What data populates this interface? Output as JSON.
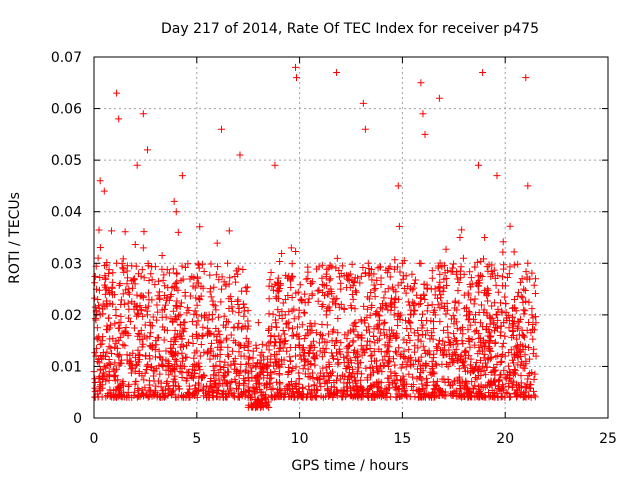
{
  "chart_data": {
    "type": "scatter",
    "title": "Day 217 of 2014, Rate Of TEC Index for receiver p475",
    "xlabel": "GPS time / hours",
    "ylabel": "ROTI / TECUs",
    "xlim": [
      0,
      25
    ],
    "ylim": [
      0,
      0.07
    ],
    "xticks": [
      0,
      5,
      10,
      15,
      20,
      25
    ],
    "yticks": [
      0,
      0.01,
      0.02,
      0.03,
      0.04,
      0.05,
      0.06,
      0.07
    ],
    "xtick_labels": [
      "0",
      "5",
      "10",
      "15",
      "20",
      "25"
    ],
    "ytick_labels": [
      "0",
      "0.01",
      "0.02",
      "0.03",
      "0.04",
      "0.05",
      "0.06",
      "0.07"
    ],
    "grid": true,
    "marker": "plus",
    "color": "#ff0000",
    "x_range_observed": [
      0.0,
      21.5
    ],
    "series": [
      {
        "name": "ROTI",
        "x": [
          0.0,
          0.1,
          0.2,
          0.3,
          0.4,
          0.5,
          0.6,
          0.8,
          1.0,
          1.1,
          1.2,
          1.3,
          1.5,
          1.8,
          2.0,
          2.2,
          2.3,
          2.4,
          2.5,
          2.6,
          2.8,
          3.0,
          3.2,
          3.5,
          3.8,
          4.0,
          4.1,
          4.2,
          4.3,
          4.5,
          4.8,
          5.0,
          5.3,
          5.6,
          6.0,
          6.2,
          6.3,
          6.5,
          6.8,
          7.0,
          7.3,
          7.5,
          7.6,
          7.8,
          8.0,
          8.2,
          8.4,
          8.6,
          8.8,
          9.0,
          9.3,
          9.6,
          9.7,
          9.8,
          10.0,
          10.3,
          10.6,
          11.0,
          11.3,
          11.6,
          11.8,
          12.0,
          12.3,
          12.6,
          13.0,
          13.2,
          13.5,
          13.8,
          14.0,
          14.3,
          14.6,
          14.9,
          15.0,
          15.3,
          15.6,
          15.8,
          16.0,
          16.3,
          16.6,
          17.0,
          17.3,
          17.6,
          17.8,
          18.0,
          18.3,
          18.6,
          18.9,
          19.0,
          19.3,
          19.6,
          20.0,
          20.2,
          20.4,
          20.6,
          20.9,
          21.0,
          21.1,
          21.3,
          21.5,
          0.3,
          0.5,
          1.1,
          1.2,
          2.1,
          2.4,
          2.6,
          3.9,
          4.3,
          6.2,
          7.1,
          8.8,
          9.8,
          9.85,
          11.8,
          13.1,
          13.2,
          14.8,
          15.9,
          16.0,
          16.1,
          16.8,
          18.7,
          18.9,
          19.6,
          21.0,
          21.1
        ],
        "y": [
          0.009,
          0.012,
          0.031,
          0.02,
          0.015,
          0.01,
          0.025,
          0.018,
          0.008,
          0.03,
          0.012,
          0.022,
          0.014,
          0.011,
          0.026,
          0.009,
          0.017,
          0.033,
          0.012,
          0.02,
          0.01,
          0.015,
          0.023,
          0.013,
          0.009,
          0.04,
          0.036,
          0.018,
          0.011,
          0.014,
          0.01,
          0.013,
          0.016,
          0.02,
          0.012,
          0.025,
          0.018,
          0.03,
          0.015,
          0.022,
          0.012,
          0.006,
          0.004,
          0.005,
          0.003,
          0.01,
          0.014,
          0.012,
          0.009,
          0.011,
          0.02,
          0.033,
          0.016,
          0.012,
          0.014,
          0.011,
          0.017,
          0.013,
          0.02,
          0.012,
          0.015,
          0.025,
          0.012,
          0.018,
          0.014,
          0.028,
          0.011,
          0.015,
          0.009,
          0.013,
          0.02,
          0.012,
          0.03,
          0.016,
          0.014,
          0.022,
          0.018,
          0.013,
          0.02,
          0.017,
          0.012,
          0.015,
          0.035,
          0.011,
          0.018,
          0.026,
          0.013,
          0.035,
          0.015,
          0.02,
          0.012,
          0.028,
          0.016,
          0.014,
          0.025,
          0.011,
          0.03,
          0.02,
          0.012,
          0.046,
          0.044,
          0.063,
          0.058,
          0.049,
          0.059,
          0.052,
          0.042,
          0.047,
          0.056,
          0.051,
          0.049,
          0.068,
          0.066,
          0.067,
          0.061,
          0.056,
          0.045,
          0.065,
          0.059,
          0.055,
          0.062,
          0.049,
          0.067,
          0.047,
          0.066,
          0.045
        ]
      }
    ],
    "dense_band": {
      "description_values": "main cluster of points",
      "typical_min": 0.004,
      "typical_max": 0.03,
      "gap_hours": [
        7.5,
        8.5
      ]
    }
  }
}
